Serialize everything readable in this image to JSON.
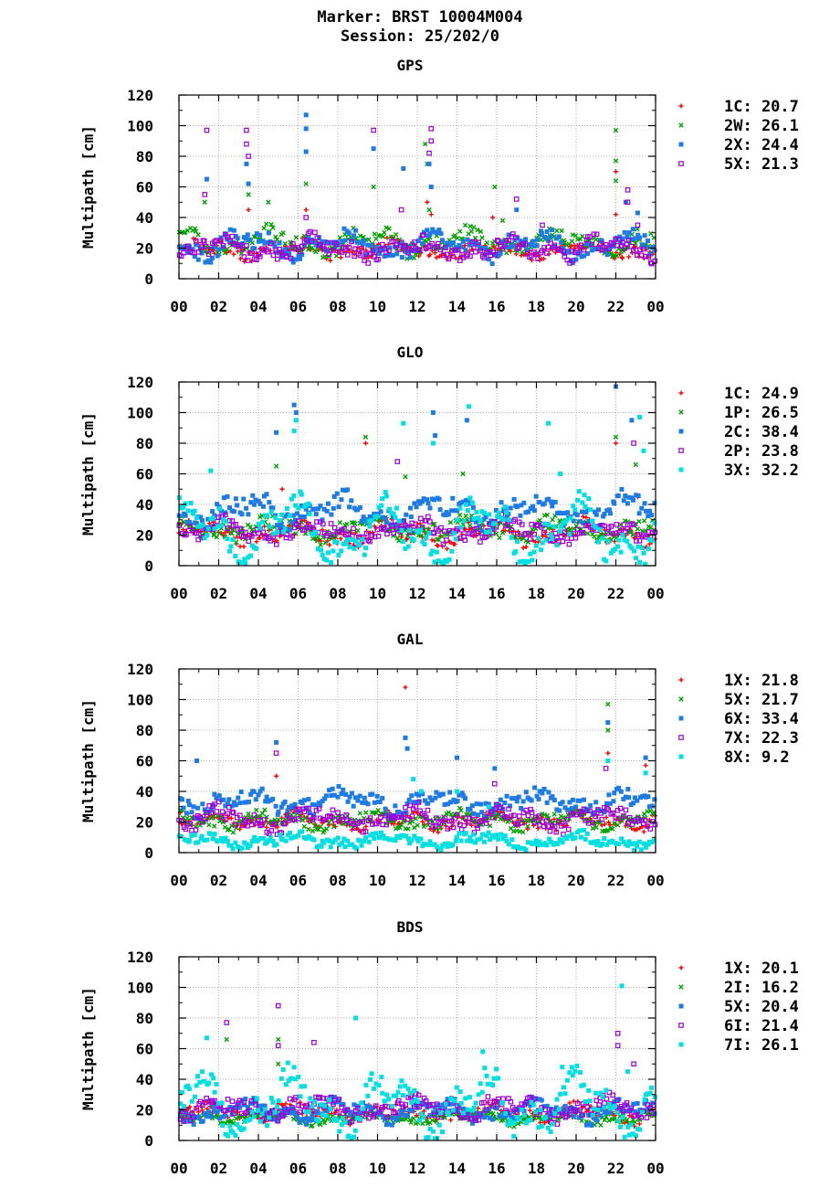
{
  "header": {
    "marker": "Marker: BRST 10004M004",
    "session": "Session: 25/202/0"
  },
  "chart_data": [
    {
      "type": "scatter",
      "title": "GPS",
      "ylabel": "Multipath [cm]",
      "xlabel": "",
      "xlim": [
        0,
        24
      ],
      "ylim": [
        0,
        120
      ],
      "xticklabels": [
        "00",
        "02",
        "04",
        "06",
        "08",
        "10",
        "12",
        "14",
        "16",
        "18",
        "20",
        "22",
        "00"
      ],
      "yticks": [
        0,
        20,
        40,
        60,
        80,
        100,
        120
      ],
      "grid": true,
      "legend_position": "right",
      "series": [
        {
          "name": "1C",
          "value": "20.7",
          "marker": "plus",
          "color": "#ff0000",
          "base": 19,
          "amp": 3,
          "spread": 4,
          "spikes": [
            [
              3.5,
              45
            ],
            [
              6.4,
              45
            ],
            [
              12.5,
              50
            ],
            [
              12.7,
              42
            ],
            [
              15.8,
              40
            ],
            [
              22.0,
              70
            ],
            [
              22.0,
              42
            ]
          ]
        },
        {
          "name": "2W",
          "value": "26.1",
          "marker": "x",
          "color": "#00a000",
          "base": 24,
          "amp": 5,
          "spread": 5,
          "spikes": [
            [
              1.3,
              50
            ],
            [
              3.5,
              55
            ],
            [
              4.5,
              50
            ],
            [
              6.4,
              62
            ],
            [
              9.8,
              60
            ],
            [
              12.4,
              88
            ],
            [
              12.5,
              75
            ],
            [
              12.6,
              45
            ],
            [
              15.9,
              60
            ],
            [
              16.3,
              38
            ],
            [
              22.0,
              97
            ],
            [
              22.0,
              77
            ],
            [
              22.0,
              64
            ]
          ]
        },
        {
          "name": "2X",
          "value": "24.4",
          "marker": "square",
          "color": "#1e7be6",
          "base": 22,
          "amp": 5,
          "spread": 5,
          "spikes": [
            [
              1.4,
              65
            ],
            [
              3.4,
              75
            ],
            [
              3.5,
              62
            ],
            [
              6.4,
              107
            ],
            [
              6.4,
              98
            ],
            [
              6.4,
              83
            ],
            [
              9.8,
              85
            ],
            [
              11.3,
              72
            ],
            [
              12.6,
              75
            ],
            [
              12.7,
              60
            ],
            [
              17.0,
              45
            ],
            [
              22.5,
              50
            ],
            [
              23.1,
              43
            ]
          ]
        },
        {
          "name": "5X",
          "value": "21.3",
          "marker": "opensquare",
          "color": "#9a00d6",
          "base": 20,
          "amp": 4,
          "spread": 5,
          "spikes": [
            [
              1.4,
              97
            ],
            [
              1.3,
              55
            ],
            [
              3.4,
              97
            ],
            [
              3.4,
              88
            ],
            [
              3.5,
              80
            ],
            [
              6.4,
              40
            ],
            [
              9.8,
              97
            ],
            [
              11.2,
              45
            ],
            [
              12.7,
              98
            ],
            [
              12.7,
              90
            ],
            [
              12.6,
              82
            ],
            [
              17.0,
              52
            ],
            [
              18.3,
              35
            ],
            [
              22.6,
              58
            ],
            [
              22.6,
              50
            ],
            [
              23.1,
              35
            ]
          ]
        }
      ]
    },
    {
      "type": "scatter",
      "title": "GLO",
      "ylabel": "Multipath [cm]",
      "xlabel": "",
      "xlim": [
        0,
        24
      ],
      "ylim": [
        0,
        120
      ],
      "xticklabels": [
        "00",
        "02",
        "04",
        "06",
        "08",
        "10",
        "12",
        "14",
        "16",
        "18",
        "20",
        "22",
        "00"
      ],
      "yticks": [
        0,
        20,
        40,
        60,
        80,
        100,
        120
      ],
      "grid": true,
      "legend_position": "right",
      "series": [
        {
          "name": "1C",
          "value": "24.9",
          "marker": "plus",
          "color": "#ff0000",
          "base": 21,
          "amp": 4,
          "spread": 5,
          "spikes": [
            [
              5.2,
              50
            ],
            [
              9.4,
              80
            ],
            [
              22.0,
              80
            ],
            [
              23.1,
              45
            ]
          ]
        },
        {
          "name": "1P",
          "value": "26.5",
          "marker": "x",
          "color": "#00a000",
          "base": 24,
          "amp": 4,
          "spread": 5,
          "spikes": [
            [
              4.9,
              65
            ],
            [
              9.4,
              84
            ],
            [
              11.4,
              58
            ],
            [
              14.3,
              60
            ],
            [
              22.0,
              84
            ],
            [
              23.0,
              66
            ]
          ]
        },
        {
          "name": "2C",
          "value": "38.4",
          "marker": "square",
          "color": "#1e7be6",
          "base": 36,
          "amp": 6,
          "spread": 6,
          "spikes": [
            [
              4.9,
              87
            ],
            [
              5.8,
              105
            ],
            [
              5.9,
              100
            ],
            [
              12.8,
              100
            ],
            [
              12.9,
              85
            ],
            [
              14.5,
              95
            ],
            [
              22.0,
              117
            ],
            [
              22.8,
              95
            ]
          ]
        },
        {
          "name": "2P",
          "value": "23.8",
          "marker": "opensquare",
          "color": "#9a00d6",
          "base": 23,
          "amp": 4,
          "spread": 5,
          "spikes": [
            [
              11.0,
              68
            ],
            [
              22.9,
              80
            ]
          ]
        },
        {
          "name": "3X",
          "value": "32.2",
          "marker": "square",
          "color": "#00e0e0",
          "base": 22,
          "amp": 16,
          "spread": 8,
          "spikes": [
            [
              1.6,
              62
            ],
            [
              5.9,
              95
            ],
            [
              5.8,
              88
            ],
            [
              11.3,
              93
            ],
            [
              12.8,
              80
            ],
            [
              14.6,
              104
            ],
            [
              18.6,
              93
            ],
            [
              19.2,
              60
            ],
            [
              23.2,
              97
            ],
            [
              23.4,
              75
            ]
          ]
        }
      ]
    },
    {
      "type": "scatter",
      "title": "GAL",
      "ylabel": "Multipath [cm]",
      "xlabel": "",
      "xlim": [
        0,
        24
      ],
      "ylim": [
        0,
        120
      ],
      "xticklabels": [
        "00",
        "02",
        "04",
        "06",
        "08",
        "10",
        "12",
        "14",
        "16",
        "18",
        "20",
        "22",
        "00"
      ],
      "yticks": [
        0,
        20,
        40,
        60,
        80,
        100,
        120
      ],
      "grid": true,
      "legend_position": "right",
      "series": [
        {
          "name": "1X",
          "value": "21.8",
          "marker": "plus",
          "color": "#ff0000",
          "base": 21,
          "amp": 3,
          "spread": 4,
          "spikes": [
            [
              4.9,
              50
            ],
            [
              11.4,
              108
            ],
            [
              21.6,
              65
            ],
            [
              23.5,
              57
            ]
          ]
        },
        {
          "name": "5X",
          "value": "21.7",
          "marker": "x",
          "color": "#00a000",
          "base": 21,
          "amp": 3,
          "spread": 4,
          "spikes": [
            [
              21.6,
              97
            ],
            [
              21.6,
              80
            ]
          ]
        },
        {
          "name": "6X",
          "value": "33.4",
          "marker": "square",
          "color": "#1e7be6",
          "base": 33,
          "amp": 4,
          "spread": 5,
          "spikes": [
            [
              0.9,
              60
            ],
            [
              4.9,
              72
            ],
            [
              11.4,
              75
            ],
            [
              11.5,
              68
            ],
            [
              14.0,
              62
            ],
            [
              15.9,
              55
            ],
            [
              21.6,
              85
            ],
            [
              23.5,
              62
            ]
          ]
        },
        {
          "name": "7X",
          "value": "22.3",
          "marker": "opensquare",
          "color": "#9a00d6",
          "base": 22,
          "amp": 4,
          "spread": 5,
          "spikes": [
            [
              4.9,
              65
            ],
            [
              15.9,
              45
            ],
            [
              21.5,
              55
            ]
          ]
        },
        {
          "name": "8X",
          "value": "9.2",
          "marker": "square",
          "color": "#00e0e0",
          "base": 8,
          "amp": 3,
          "spread": 3,
          "spikes": [
            [
              11.8,
              48
            ],
            [
              12.2,
              40
            ],
            [
              14.0,
              40
            ],
            [
              15.6,
              30
            ],
            [
              21.6,
              60
            ],
            [
              23.5,
              52
            ]
          ]
        }
      ]
    },
    {
      "type": "scatter",
      "title": "BDS",
      "ylabel": "Multipath [cm]",
      "xlabel": "",
      "xlim": [
        0,
        24
      ],
      "ylim": [
        0,
        120
      ],
      "xticklabels": [
        "00",
        "02",
        "04",
        "06",
        "08",
        "10",
        "12",
        "14",
        "16",
        "18",
        "20",
        "22",
        "00"
      ],
      "yticks": [
        0,
        20,
        40,
        60,
        80,
        100,
        120
      ],
      "grid": true,
      "legend_position": "right",
      "series": [
        {
          "name": "1X",
          "value": "20.1",
          "marker": "plus",
          "color": "#ff0000",
          "base": 18,
          "amp": 3,
          "spread": 4,
          "spikes": [
            [
              5.0,
              24
            ]
          ]
        },
        {
          "name": "2I",
          "value": "16.2",
          "marker": "x",
          "color": "#00a000",
          "base": 15,
          "amp": 2,
          "spread": 3,
          "spikes": [
            [
              2.4,
              66
            ],
            [
              5.0,
              66
            ],
            [
              5.0,
              50
            ]
          ]
        },
        {
          "name": "5X",
          "value": "20.4",
          "marker": "square",
          "color": "#1e7be6",
          "base": 19,
          "amp": 4,
          "spread": 4,
          "spikes": []
        },
        {
          "name": "6I",
          "value": "21.4",
          "marker": "opensquare",
          "color": "#9a00d6",
          "base": 21,
          "amp": 4,
          "spread": 5,
          "spikes": [
            [
              2.4,
              77
            ],
            [
              5.0,
              88
            ],
            [
              5.0,
              62
            ],
            [
              6.8,
              64
            ],
            [
              22.1,
              70
            ],
            [
              22.1,
              62
            ],
            [
              22.9,
              50
            ]
          ]
        },
        {
          "name": "7I",
          "value": "26.1",
          "marker": "square",
          "color": "#00e0e0",
          "base": 24,
          "amp": 14,
          "spread": 8,
          "spikes": [
            [
              1.4,
              67
            ],
            [
              8.9,
              80
            ],
            [
              15.3,
              58
            ],
            [
              19.3,
              48
            ],
            [
              22.3,
              101
            ],
            [
              22.6,
              45
            ]
          ]
        }
      ]
    }
  ]
}
